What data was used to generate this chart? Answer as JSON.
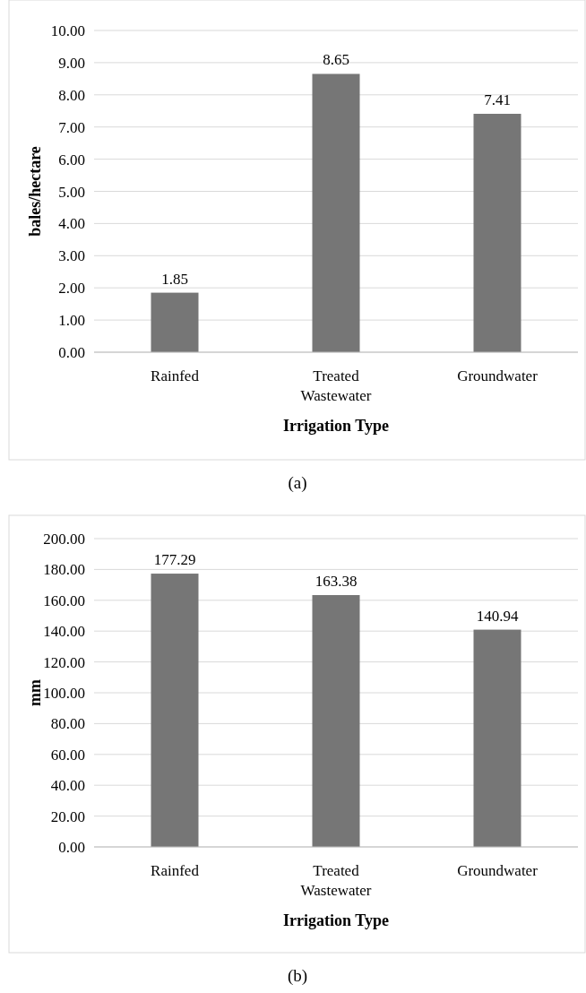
{
  "chart_data": [
    {
      "type": "bar",
      "categories": [
        "Rainfed",
        "Treated Wastewater",
        "Groundwater"
      ],
      "values": [
        1.85,
        8.65,
        7.41
      ],
      "color": "#767676",
      "ylabel": "bales/hectare",
      "xlabel": "Irrigation Type",
      "ylim": [
        0,
        10
      ],
      "yticks": [
        {
          "value": 0,
          "label": "0.00"
        },
        {
          "value": 1,
          "label": "1.00"
        },
        {
          "value": 2,
          "label": "2.00"
        },
        {
          "value": 3,
          "label": "3.00"
        },
        {
          "value": 4,
          "label": "4.00"
        },
        {
          "value": 5,
          "label": "5.00"
        },
        {
          "value": 6,
          "label": "6.00"
        },
        {
          "value": 7,
          "label": "7.00"
        },
        {
          "value": 8,
          "label": "8.00"
        },
        {
          "value": 9,
          "label": "9.00"
        },
        {
          "value": 10,
          "label": "10.00"
        }
      ],
      "grid": "y",
      "data_labels": true,
      "annotations": [
        "(a)"
      ]
    },
    {
      "type": "bar",
      "categories": [
        "Rainfed",
        "Treated Wastewater",
        "Groundwater"
      ],
      "values": [
        177.29,
        163.38,
        140.94
      ],
      "color": "#767676",
      "ylabel": "mm",
      "xlabel": "Irrigation Type",
      "ylim": [
        0,
        200
      ],
      "yticks": [
        {
          "value": 0,
          "label": "0.00"
        },
        {
          "value": 20,
          "label": "20.00"
        },
        {
          "value": 40,
          "label": "40.00"
        },
        {
          "value": 60,
          "label": "60.00"
        },
        {
          "value": 80,
          "label": "80.00"
        },
        {
          "value": 100,
          "label": "100.00"
        },
        {
          "value": 120,
          "label": "120.00"
        },
        {
          "value": 140,
          "label": "140.00"
        },
        {
          "value": 160,
          "label": "160.00"
        },
        {
          "value": 180,
          "label": "180.00"
        },
        {
          "value": 200,
          "label": "200.00"
        }
      ],
      "grid": "y",
      "data_labels": true,
      "annotations": [
        "(b)"
      ]
    }
  ]
}
